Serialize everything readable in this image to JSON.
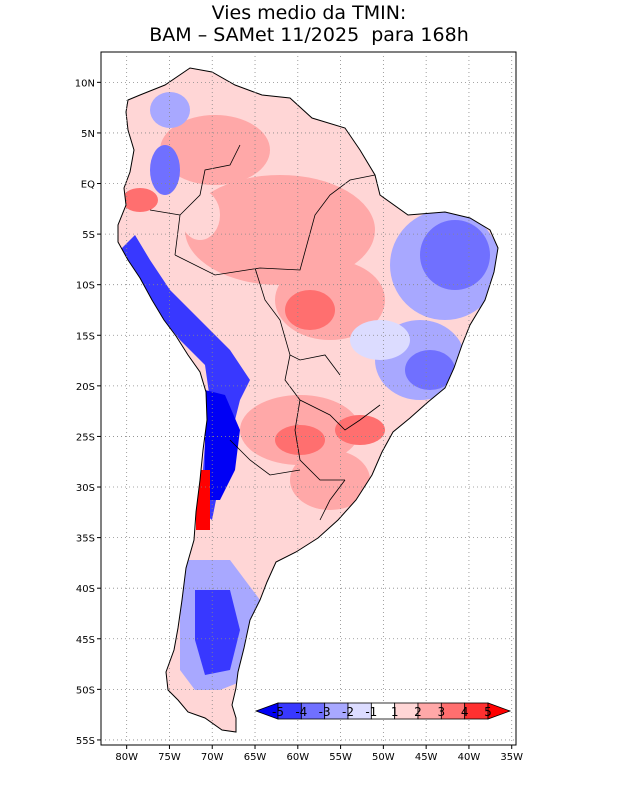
{
  "title": {
    "line1": "Vies medio da TMIN:",
    "line2": "BAM – SAMet 11/2025  para 168h"
  },
  "map": {
    "lon_range": [
      -83,
      -34.5
    ],
    "lat_range": [
      -55.5,
      13
    ],
    "lon_ticks": [
      "80W",
      "75W",
      "70W",
      "65W",
      "60W",
      "55W",
      "50W",
      "45W",
      "40W",
      "35W"
    ],
    "lat_ticks": [
      "10N",
      "5N",
      "EQ",
      "5S",
      "10S",
      "15S",
      "20S",
      "25S",
      "30S",
      "35S",
      "40S",
      "45S",
      "50S",
      "55S"
    ],
    "grid": true
  },
  "colorbar": {
    "labels": [
      "-5",
      "-4",
      "-3",
      "-2",
      "-1",
      "1",
      "2",
      "3",
      "4",
      "5"
    ],
    "colors": [
      "#0000f5",
      "#3838ff",
      "#7070ff",
      "#a8a8ff",
      "#dcdcff",
      "#ffffff",
      "#ffd6d6",
      "#ffa8a8",
      "#ff6f6f",
      "#ff3030",
      "#ff0000"
    ]
  }
}
